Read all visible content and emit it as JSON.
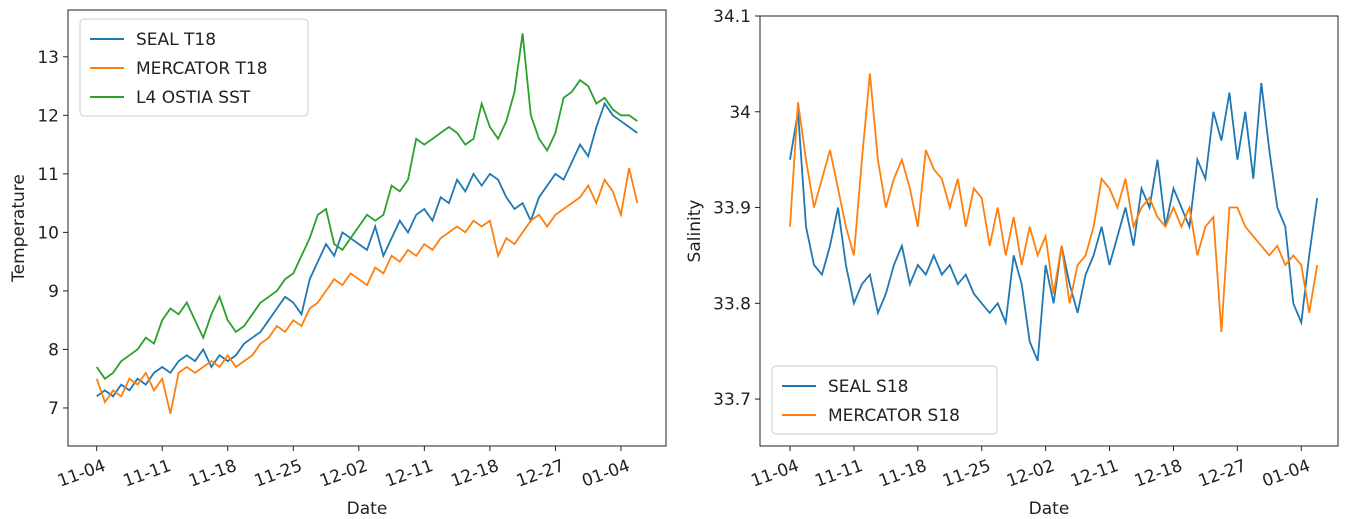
{
  "chart_data": [
    {
      "type": "line",
      "xlabel": "Date",
      "ylabel": "Temperature",
      "legend": "upper-left",
      "x": [
        0,
        1,
        2,
        3,
        4,
        5,
        6,
        7,
        8,
        9,
        10,
        11,
        12,
        13,
        14,
        15,
        16,
        17,
        18,
        19,
        20,
        21,
        22,
        23,
        24,
        25,
        26,
        27,
        28,
        29,
        30,
        31,
        32,
        33,
        34,
        35,
        36,
        37,
        38,
        39,
        40,
        41,
        42,
        43,
        44,
        45,
        46,
        47,
        48,
        49,
        50,
        51,
        52,
        53,
        54,
        55,
        56,
        57,
        58,
        59,
        60,
        61,
        62,
        63,
        64,
        65,
        66
      ],
      "xlim": [
        -3.5,
        69.5
      ],
      "xticks": [
        {
          "value": 0,
          "label": "11-04"
        },
        {
          "value": 8,
          "label": "11-11"
        },
        {
          "value": 16,
          "label": "11-18"
        },
        {
          "value": 24,
          "label": "11-25"
        },
        {
          "value": 32,
          "label": "12-02"
        },
        {
          "value": 40,
          "label": "12-11"
        },
        {
          "value": 48,
          "label": "12-18"
        },
        {
          "value": 56,
          "label": "12-27"
        },
        {
          "value": 64,
          "label": "01-04"
        }
      ],
      "ylim": [
        6.35,
        13.8
      ],
      "yticks": [
        7,
        8,
        9,
        10,
        11,
        12,
        13
      ],
      "series": [
        {
          "name": "SEAL T18",
          "color": "#1f77b4",
          "values": [
            7.2,
            7.3,
            7.2,
            7.4,
            7.3,
            7.5,
            7.4,
            7.6,
            7.7,
            7.6,
            7.8,
            7.9,
            7.8,
            8.0,
            7.7,
            7.9,
            7.8,
            7.9,
            8.1,
            8.2,
            8.3,
            8.5,
            8.7,
            8.9,
            8.8,
            8.6,
            9.2,
            9.5,
            9.8,
            9.6,
            10.0,
            9.9,
            9.8,
            9.7,
            10.1,
            9.6,
            9.9,
            10.2,
            10.0,
            10.3,
            10.4,
            10.2,
            10.6,
            10.5,
            10.9,
            10.7,
            11.0,
            10.8,
            11.0,
            10.9,
            10.6,
            10.4,
            10.5,
            10.2,
            10.6,
            10.8,
            11.0,
            10.9,
            11.2,
            11.5,
            11.3,
            11.8,
            12.2,
            12.0,
            11.9,
            11.8,
            11.7
          ]
        },
        {
          "name": "MERCATOR T18",
          "color": "#ff7f0e",
          "values": [
            7.5,
            7.1,
            7.3,
            7.2,
            7.5,
            7.4,
            7.6,
            7.3,
            7.5,
            6.9,
            7.6,
            7.7,
            7.6,
            7.7,
            7.8,
            7.7,
            7.9,
            7.7,
            7.8,
            7.9,
            8.1,
            8.2,
            8.4,
            8.3,
            8.5,
            8.4,
            8.7,
            8.8,
            9.0,
            9.2,
            9.1,
            9.3,
            9.2,
            9.1,
            9.4,
            9.3,
            9.6,
            9.5,
            9.7,
            9.6,
            9.8,
            9.7,
            9.9,
            10.0,
            10.1,
            10.0,
            10.2,
            10.1,
            10.2,
            9.6,
            9.9,
            9.8,
            10.0,
            10.2,
            10.3,
            10.1,
            10.3,
            10.4,
            10.5,
            10.6,
            10.8,
            10.5,
            10.9,
            10.7,
            10.3,
            11.1,
            10.5
          ]
        },
        {
          "name": "L4 OSTIA SST",
          "color": "#2ca02c",
          "values": [
            7.7,
            7.5,
            7.6,
            7.8,
            7.9,
            8.0,
            8.2,
            8.1,
            8.5,
            8.7,
            8.6,
            8.8,
            8.5,
            8.2,
            8.6,
            8.9,
            8.5,
            8.3,
            8.4,
            8.6,
            8.8,
            8.9,
            9.0,
            9.2,
            9.3,
            9.6,
            9.9,
            10.3,
            10.4,
            9.8,
            9.7,
            9.9,
            10.1,
            10.3,
            10.2,
            10.3,
            10.8,
            10.7,
            10.9,
            11.6,
            11.5,
            11.6,
            11.7,
            11.8,
            11.7,
            11.5,
            11.6,
            12.2,
            11.8,
            11.6,
            11.9,
            12.4,
            13.4,
            12.0,
            11.6,
            11.4,
            11.7,
            12.3,
            12.4,
            12.6,
            12.5,
            12.2,
            12.3,
            12.1,
            12.0,
            12.0,
            11.9
          ]
        }
      ]
    },
    {
      "type": "line",
      "xlabel": "Date",
      "ylabel": "Salinity",
      "legend": "lower-left",
      "x": [
        0,
        1,
        2,
        3,
        4,
        5,
        6,
        7,
        8,
        9,
        10,
        11,
        12,
        13,
        14,
        15,
        16,
        17,
        18,
        19,
        20,
        21,
        22,
        23,
        24,
        25,
        26,
        27,
        28,
        29,
        30,
        31,
        32,
        33,
        34,
        35,
        36,
        37,
        38,
        39,
        40,
        41,
        42,
        43,
        44,
        45,
        46,
        47,
        48,
        49,
        50,
        51,
        52,
        53,
        54,
        55,
        56,
        57,
        58,
        59,
        60,
        61,
        62,
        63,
        64,
        65,
        66
      ],
      "xlim": [
        -3.76,
        68.6
      ],
      "xticks": [
        {
          "value": 0,
          "label": "11-04"
        },
        {
          "value": 8,
          "label": "11-11"
        },
        {
          "value": 16,
          "label": "11-18"
        },
        {
          "value": 24,
          "label": "11-25"
        },
        {
          "value": 32,
          "label": "12-02"
        },
        {
          "value": 40,
          "label": "12-11"
        },
        {
          "value": 48,
          "label": "12-18"
        },
        {
          "value": 56,
          "label": "12-27"
        },
        {
          "value": 64,
          "label": "01-04"
        }
      ],
      "ylim": [
        33.651,
        34.1
      ],
      "yticks": [
        33.7,
        33.8,
        33.9,
        34.0,
        34.1
      ],
      "series": [
        {
          "name": "SEAL S18",
          "color": "#1f77b4",
          "values": [
            33.95,
            34.0,
            33.88,
            33.84,
            33.83,
            33.86,
            33.9,
            33.84,
            33.8,
            33.82,
            33.83,
            33.79,
            33.81,
            33.84,
            33.86,
            33.82,
            33.84,
            33.83,
            33.85,
            33.83,
            33.84,
            33.82,
            33.83,
            33.81,
            33.8,
            33.79,
            33.8,
            33.78,
            33.85,
            33.82,
            33.76,
            33.74,
            33.84,
            33.8,
            33.86,
            33.82,
            33.79,
            33.83,
            33.85,
            33.88,
            33.84,
            33.87,
            33.9,
            33.86,
            33.92,
            33.9,
            33.95,
            33.88,
            33.92,
            33.9,
            33.88,
            33.95,
            33.93,
            34.0,
            33.97,
            34.02,
            33.95,
            34.0,
            33.93,
            34.03,
            33.96,
            33.9,
            33.88,
            33.8,
            33.78,
            33.85,
            33.91
          ]
        },
        {
          "name": "MERCATOR S18",
          "color": "#ff7f0e",
          "values": [
            33.88,
            34.01,
            33.95,
            33.9,
            33.93,
            33.96,
            33.92,
            33.88,
            33.85,
            33.95,
            34.04,
            33.95,
            33.9,
            33.93,
            33.95,
            33.92,
            33.88,
            33.96,
            33.94,
            33.93,
            33.9,
            33.93,
            33.88,
            33.92,
            33.91,
            33.86,
            33.9,
            33.85,
            33.89,
            33.84,
            33.88,
            33.85,
            33.87,
            33.81,
            33.86,
            33.8,
            33.84,
            33.85,
            33.88,
            33.93,
            33.92,
            33.9,
            33.93,
            33.88,
            33.9,
            33.91,
            33.89,
            33.88,
            33.9,
            33.88,
            33.9,
            33.85,
            33.88,
            33.89,
            33.77,
            33.9,
            33.9,
            33.88,
            33.87,
            33.86,
            33.85,
            33.86,
            33.84,
            33.85,
            33.84,
            33.79,
            33.84
          ]
        }
      ]
    }
  ]
}
